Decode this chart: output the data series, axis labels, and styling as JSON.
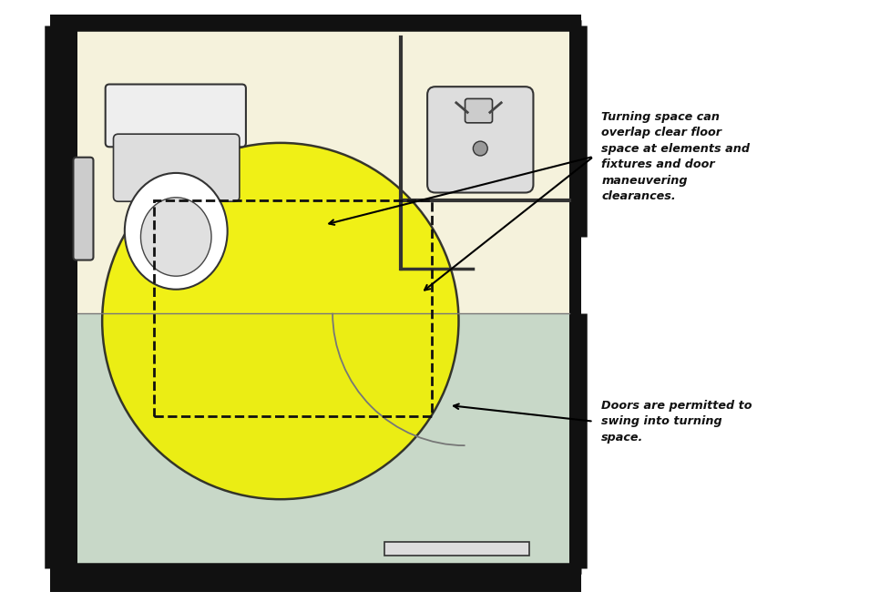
{
  "bg_color": "#ffffff",
  "floor_cream": "#f5f2dc",
  "floor_gray": "#c8d8c8",
  "wall_color": "#111111",
  "circle_fill": "#f0f000",
  "circle_edge": "#222222",
  "annotation1": "Turning space can\noverlap clear floor\nspace at elements and\nfixtures and door\nmaneuvering\nclearances.",
  "annotation2": "Doors are permitted to\nswing into turning\nspace."
}
